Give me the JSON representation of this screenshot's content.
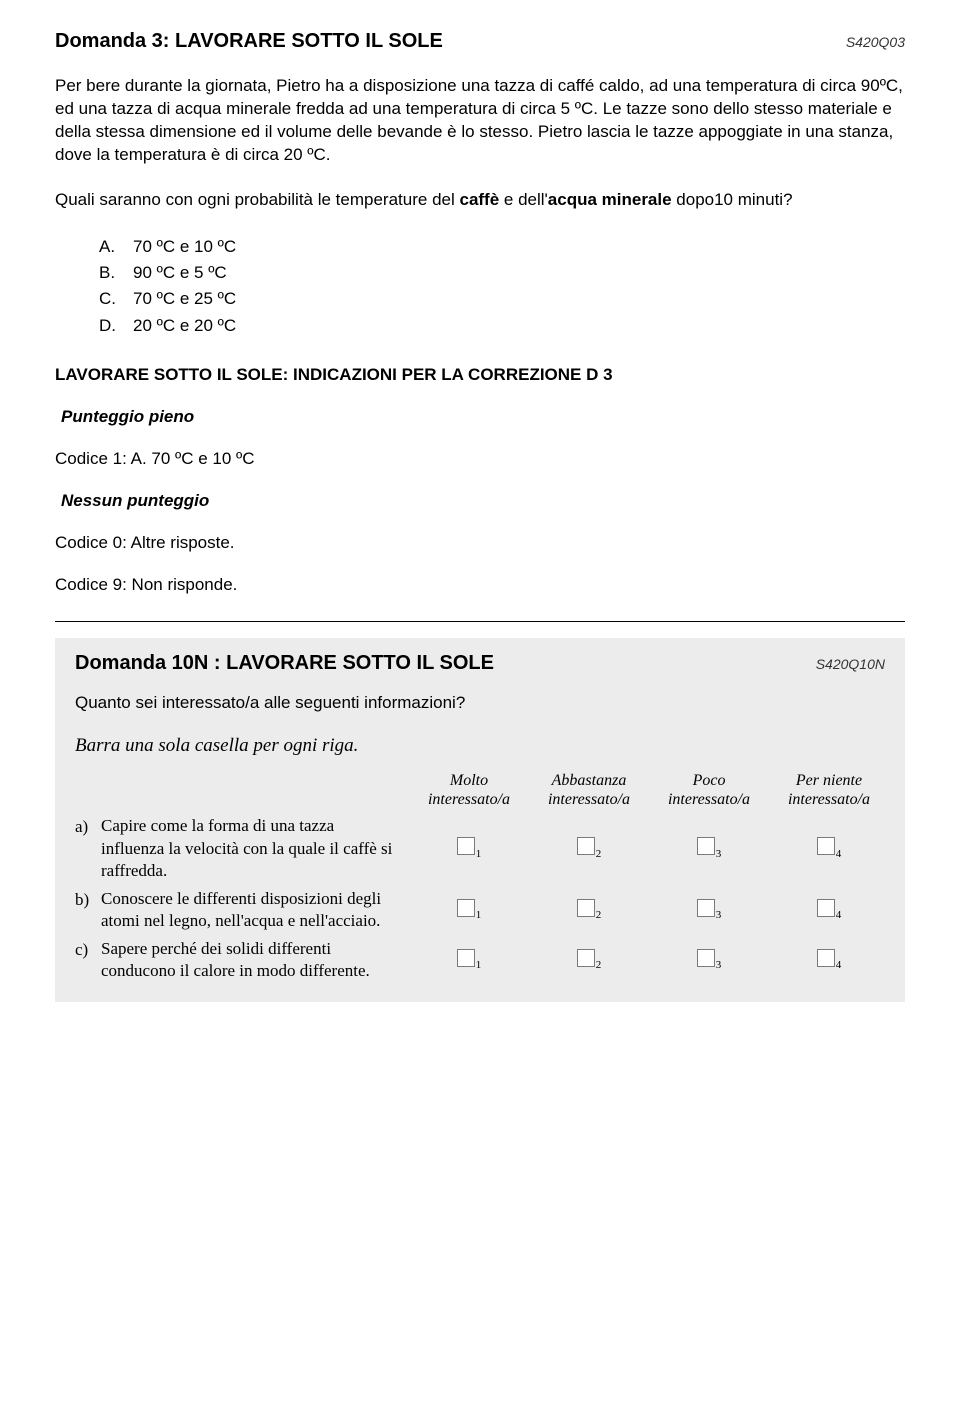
{
  "q3": {
    "title": "Domanda 3: LAVORARE SOTTO IL SOLE",
    "code": "S420Q03",
    "para1": "Per bere durante la giornata, Pietro ha a disposizione una tazza di caffé caldo, ad una temperatura di circa 90ºC, ed una tazza di acqua minerale fredda ad una temperatura di circa 5 ºC. Le tazze sono dello stesso materiale e della stessa dimensione ed il volume delle bevande è lo stesso. Pietro lascia le tazze appoggiate in una stanza, dove la temperatura è di circa  20 ºC.",
    "para2_pre": "Quali saranno con ogni probabilità le temperature del ",
    "para2_b1": "caffè",
    "para2_mid": " e dell'",
    "para2_b2": "acqua minerale",
    "para2_post": " dopo10 minuti?",
    "options": [
      {
        "letter": "A.",
        "text": "70 ºC e 10 ºC"
      },
      {
        "letter": "B.",
        "text": "90 ºC e 5 ºC"
      },
      {
        "letter": "C.",
        "text": "70 ºC e 25 ºC"
      },
      {
        "letter": "D.",
        "text": "20 ºC e 20 ºC"
      }
    ],
    "corr_title": "LAVORARE SOTTO IL SOLE: INDICAZIONI PER LA CORREZIONE  D 3",
    "full_score_label": "Punteggio pieno",
    "full_score_line": "Codice 1: A.   70 ºC e 10 ºC",
    "no_score_label": "Nessun punteggio",
    "no_score_line0": "Codice 0:  Altre risposte.",
    "no_score_line9": "Codice 9:  Non risponde."
  },
  "q10n": {
    "title": "Domanda 10N : LAVORARE SOTTO IL SOLE",
    "code": "S420Q10N",
    "subq": "Quanto sei interessato/a alle seguenti informazioni?",
    "instr": "Barra una sola casella per ogni riga.",
    "head": {
      "c1a": "Molto",
      "c1b": "interessato/a",
      "c2a": "Abbastanza",
      "c2b": "interessato/a",
      "c3a": "Poco",
      "c3b": "interessato/a",
      "c4a": "Per niente",
      "c4b": "interessato/a"
    },
    "rows": [
      {
        "letter": "a)",
        "text": "Capire come la forma di una tazza influenza la velocità con la quale il caffè si raffredda."
      },
      {
        "letter": "b)",
        "text": "Conoscere le differenti disposizioni degli atomi nel legno, nell'acqua e nell'acciaio."
      },
      {
        "letter": "c)",
        "text": "Sapere perché dei solidi differenti conducono il calore in modo differente."
      }
    ],
    "subs": {
      "s1": "1",
      "s2": "2",
      "s3": "3",
      "s4": "4"
    }
  }
}
